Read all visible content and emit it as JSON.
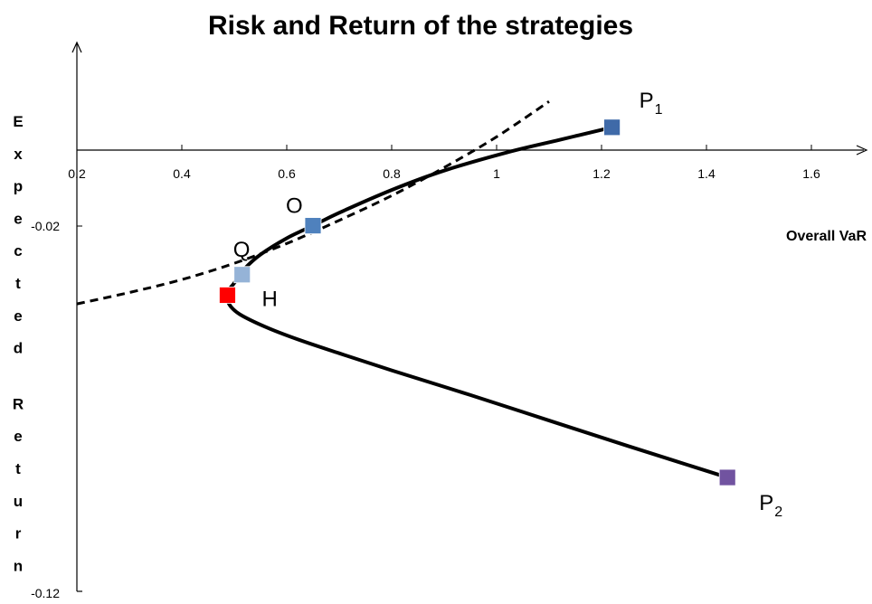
{
  "chart_data": {
    "type": "line",
    "title": "Risk and Return of the strategies",
    "xlabel": "Overall VaR",
    "ylabel": "Expected Return",
    "xlim": [
      0.2,
      1.7
    ],
    "ylim": [
      -0.12,
      0.01
    ],
    "x_ticks": [
      "0.2",
      "0.4",
      "0.6",
      "0.8",
      "1",
      "1.2",
      "1.4",
      "1.6"
    ],
    "y_ticks": [
      "-0.02",
      "-0.12"
    ],
    "series": [
      {
        "style": "solid",
        "points": [
          [
            1.22,
            0.006
          ],
          [
            1.12,
            0.0027
          ],
          [
            1.02,
            -0.0006
          ],
          [
            0.9,
            -0.0054
          ],
          [
            0.8,
            -0.0105
          ],
          [
            0.7,
            -0.0165
          ],
          [
            0.65,
            -0.0199
          ],
          [
            0.6,
            -0.0232
          ],
          [
            0.55,
            -0.0275
          ],
          [
            0.52,
            -0.0312
          ],
          [
            0.5,
            -0.035
          ],
          [
            0.487,
            -0.0375
          ],
          [
            0.49,
            -0.0405
          ],
          [
            0.51,
            -0.0432
          ],
          [
            0.56,
            -0.0466
          ],
          [
            0.62,
            -0.0498
          ],
          [
            0.7,
            -0.0535
          ],
          [
            0.8,
            -0.058
          ],
          [
            0.95,
            -0.0645
          ],
          [
            1.1,
            -0.0712
          ],
          [
            1.25,
            -0.0779
          ],
          [
            1.44,
            -0.0862
          ]
        ]
      },
      {
        "style": "dashed",
        "points": [
          [
            0.2,
            -0.0405
          ],
          [
            0.3,
            -0.0375
          ],
          [
            0.4,
            -0.0341
          ],
          [
            0.5,
            -0.0298
          ],
          [
            0.6,
            -0.0246
          ],
          [
            0.7,
            -0.0185
          ],
          [
            0.8,
            -0.012
          ],
          [
            0.9,
            -0.0046
          ],
          [
            1.0,
            0.0035
          ],
          [
            1.1,
            0.0128
          ]
        ]
      }
    ],
    "points": [
      {
        "label": "P",
        "sub": "1",
        "x": 1.22,
        "y": 0.006,
        "color": "#3f6aa8"
      },
      {
        "label": "O",
        "sub": "",
        "x": 0.65,
        "y": -0.0199,
        "color": "#4f81bd"
      },
      {
        "label": "Q",
        "sub": "",
        "x": 0.515,
        "y": -0.0328,
        "color": "#95b3d7"
      },
      {
        "label": "H",
        "sub": "",
        "x": 0.487,
        "y": -0.0382,
        "color": "#ff0000"
      },
      {
        "label": "P",
        "sub": "2",
        "x": 1.44,
        "y": -0.0862,
        "color": "#7153a0"
      }
    ],
    "grid": false,
    "legend": "none"
  }
}
